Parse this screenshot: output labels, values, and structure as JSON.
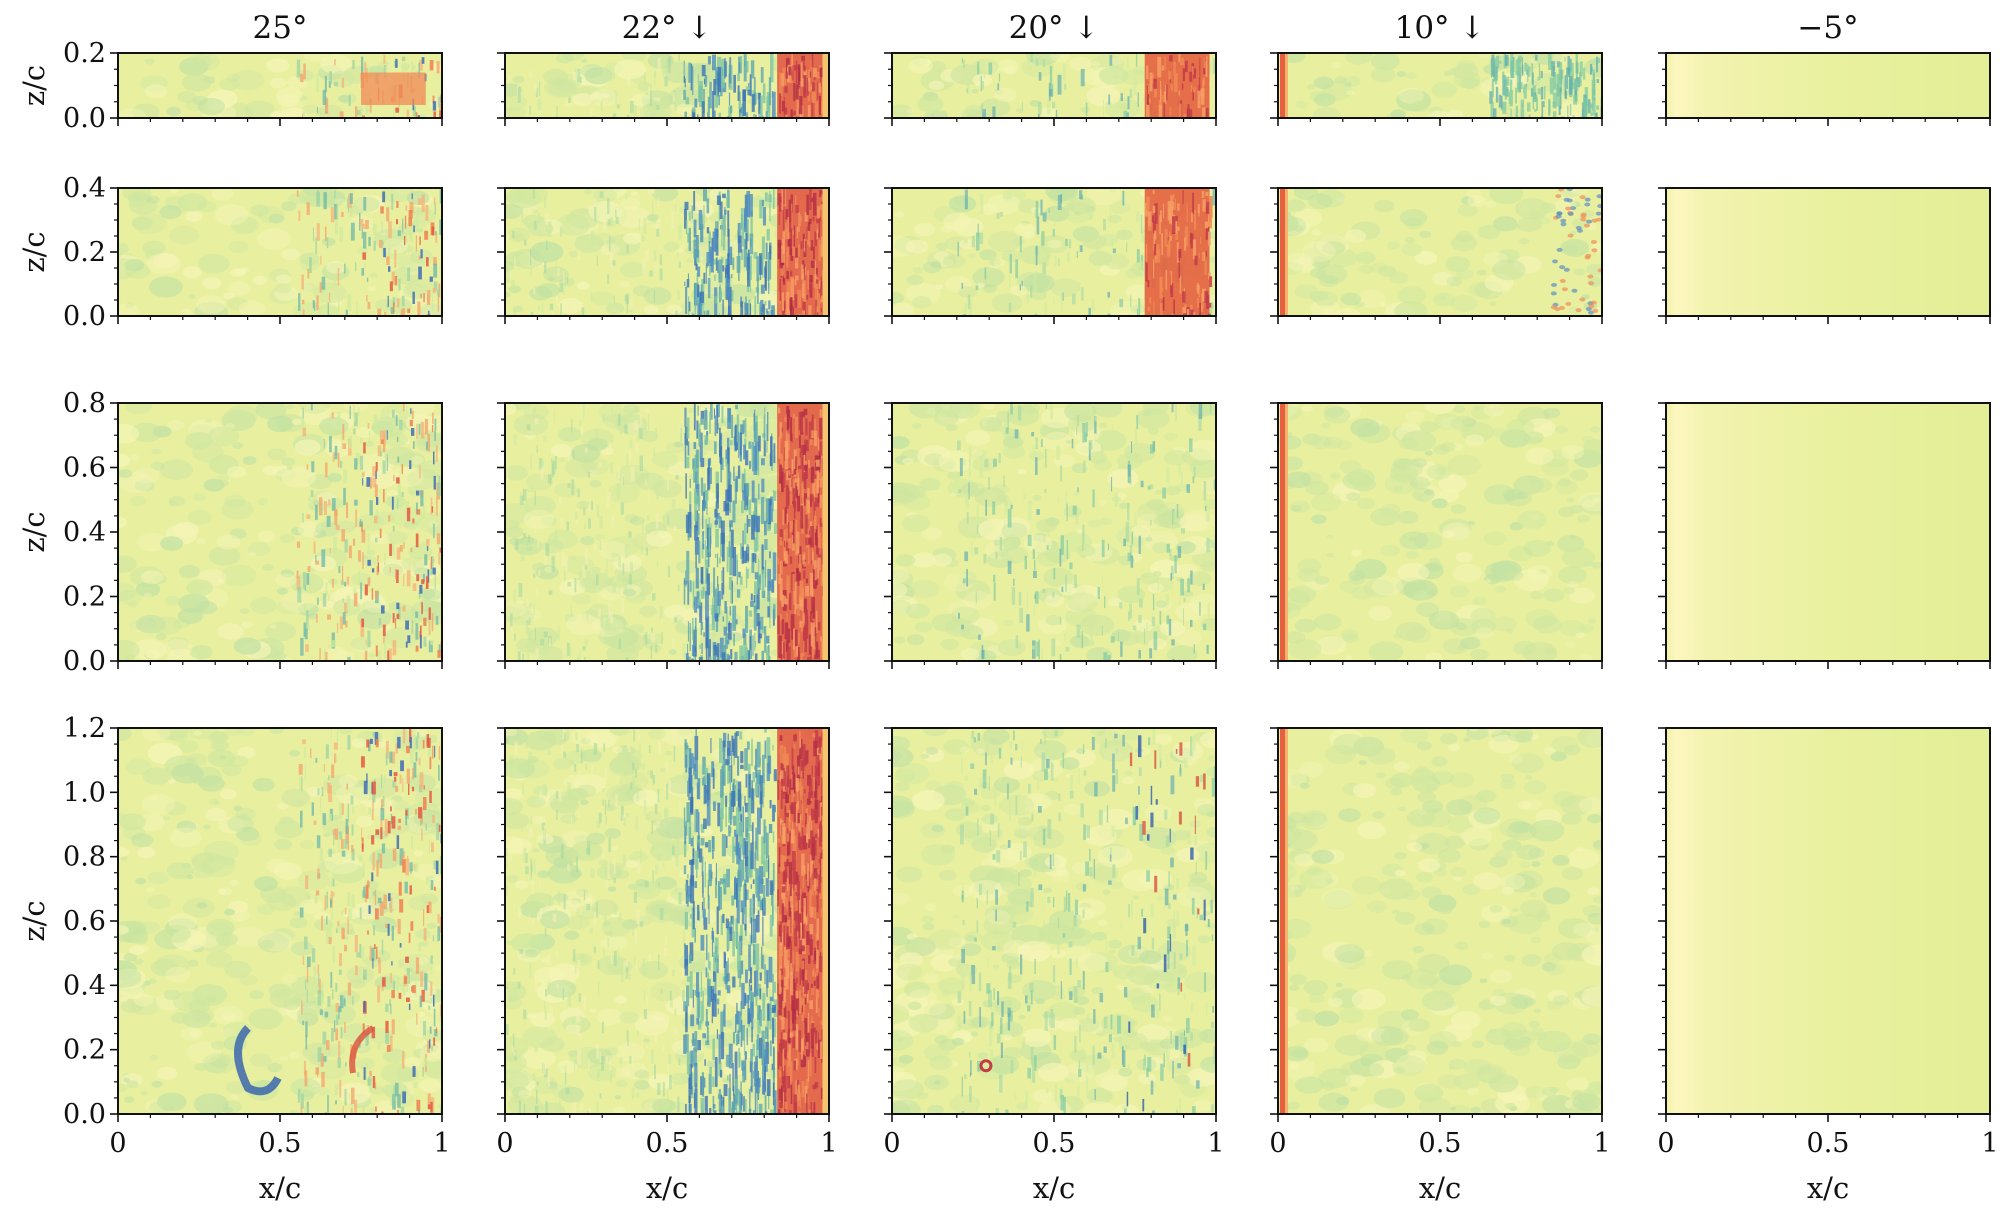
{
  "chart_data": {
    "type": "heatmap",
    "colormap": "Spectral_r",
    "colors": {
      "background_field": "#e8f0a0",
      "low": "#3a56b5",
      "mid_low": "#66c2a5",
      "high": "#d53e4f",
      "mid_high": "#f46d43"
    },
    "columns": [
      {
        "title": "25°",
        "key": "c25"
      },
      {
        "title": "22° ↓",
        "key": "c22"
      },
      {
        "title": "20° ↓",
        "key": "c20"
      },
      {
        "title": "10° ↓",
        "key": "c10"
      },
      {
        "title": "−5°",
        "key": "cm5"
      }
    ],
    "rows": [
      {
        "ylim": [
          0,
          0.2
        ],
        "yticks": [
          "0.0",
          "0.2"
        ],
        "ylabel": "z/c"
      },
      {
        "ylim": [
          0,
          0.4
        ],
        "yticks": [
          "0.0",
          "0.2",
          "0.4"
        ],
        "ylabel": "z/c"
      },
      {
        "ylim": [
          0,
          0.8
        ],
        "yticks": [
          "0.0",
          "0.2",
          "0.4",
          "0.6",
          "0.8"
        ],
        "ylabel": "z/c"
      },
      {
        "ylim": [
          0,
          1.2
        ],
        "yticks": [
          "0.0",
          "0.2",
          "0.4",
          "0.6",
          "0.8",
          "1.0",
          "1.2"
        ],
        "ylabel": "z/c"
      }
    ],
    "xlim": [
      0,
      1
    ],
    "xticks": [
      "0",
      "0.5",
      "1"
    ],
    "xlabel": "x/c",
    "grid": false,
    "legend": "none"
  }
}
